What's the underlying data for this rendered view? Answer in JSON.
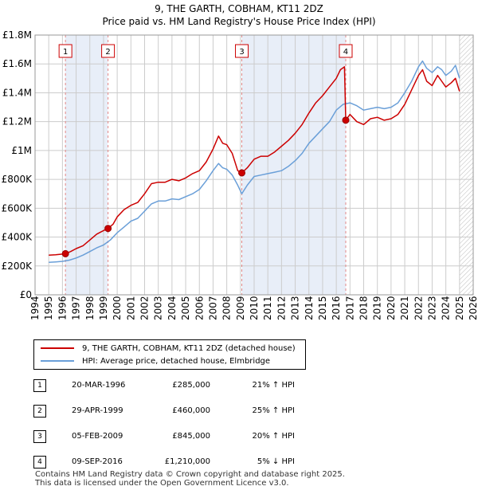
{
  "title": "9, THE GARTH, COBHAM, KT11 2DZ",
  "subtitle": "Price paid vs. HM Land Registry's House Price Index (HPI)",
  "legend": {
    "property": "9, THE GARTH, COBHAM, KT11 2DZ (detached house)",
    "hpi": "HPI: Average price, detached house, Elmbridge"
  },
  "colors": {
    "property": "#cc0000",
    "hpi": "#6a9fd8",
    "shade": "#e8eef8",
    "grid": "#cccccc",
    "vline": "#e38888"
  },
  "transactions": [
    {
      "num": "1",
      "date": "20-MAR-1996",
      "price": "£285,000",
      "hpi": "21% ↑ HPI"
    },
    {
      "num": "2",
      "date": "29-APR-1999",
      "price": "£460,000",
      "hpi": "25% ↑ HPI"
    },
    {
      "num": "3",
      "date": "05-FEB-2009",
      "price": "£845,000",
      "hpi": "20% ↑ HPI"
    },
    {
      "num": "4",
      "date": "09-SEP-2016",
      "price": "£1,210,000",
      "hpi": "5% ↓ HPI"
    }
  ],
  "footer": {
    "line1": "Contains HM Land Registry data © Crown copyright and database right 2025.",
    "line2": "This data is licensed under the Open Government Licence v3.0."
  },
  "chart_data": {
    "type": "line",
    "title": "9, THE GARTH, COBHAM, KT11 2DZ",
    "subtitle": "Price paid vs. HM Land Registry's House Price Index (HPI)",
    "xlabel": "",
    "ylabel": "",
    "xlim": [
      1994,
      2026
    ],
    "ylim": [
      0,
      1800000
    ],
    "xticks": [
      1994,
      1995,
      1996,
      1997,
      1998,
      1999,
      2000,
      2001,
      2002,
      2003,
      2004,
      2005,
      2006,
      2007,
      2008,
      2009,
      2010,
      2011,
      2012,
      2013,
      2014,
      2015,
      2016,
      2017,
      2018,
      2019,
      2020,
      2021,
      2022,
      2023,
      2024,
      2025,
      2026
    ],
    "yticks": [
      {
        "value": 0,
        "label": "£0"
      },
      {
        "value": 200000,
        "label": "£200K"
      },
      {
        "value": 400000,
        "label": "£400K"
      },
      {
        "value": 600000,
        "label": "£600K"
      },
      {
        "value": 800000,
        "label": "£800K"
      },
      {
        "value": 1000000,
        "label": "£1M"
      },
      {
        "value": 1200000,
        "label": "£1.2M"
      },
      {
        "value": 1400000,
        "label": "£1.4M"
      },
      {
        "value": 1600000,
        "label": "£1.6M"
      },
      {
        "value": 1800000,
        "label": "£1.8M"
      }
    ],
    "shaded_ranges": [
      [
        1996.2,
        1999.3
      ],
      [
        2009.1,
        2016.7
      ]
    ],
    "future_hatch_from": 2025.0,
    "sale_markers": [
      {
        "label": "1",
        "x": 1996.22,
        "y": 285000
      },
      {
        "label": "2",
        "x": 1999.33,
        "y": 460000
      },
      {
        "label": "3",
        "x": 2009.1,
        "y": 845000
      },
      {
        "label": "4",
        "x": 2016.69,
        "y": 1210000
      }
    ],
    "series": [
      {
        "name": "9, THE GARTH, COBHAM, KT11 2DZ (detached house)",
        "color": "#cc0000",
        "x": [
          1995.0,
          1995.5,
          1996.0,
          1996.22,
          1996.6,
          1997.0,
          1997.5,
          1998.0,
          1998.5,
          1999.0,
          1999.33,
          1999.7,
          2000.0,
          2000.5,
          2001.0,
          2001.5,
          2002.0,
          2002.5,
          2003.0,
          2003.5,
          2004.0,
          2004.5,
          2005.0,
          2005.5,
          2006.0,
          2006.5,
          2007.0,
          2007.4,
          2007.7,
          2008.0,
          2008.4,
          2008.8,
          2009.1,
          2009.5,
          2010.0,
          2010.5,
          2011.0,
          2011.5,
          2012.0,
          2012.5,
          2013.0,
          2013.5,
          2014.0,
          2014.5,
          2015.0,
          2015.5,
          2016.0,
          2016.3,
          2016.6,
          2016.69,
          2017.0,
          2017.5,
          2018.0,
          2018.5,
          2019.0,
          2019.5,
          2020.0,
          2020.5,
          2021.0,
          2021.5,
          2022.0,
          2022.3,
          2022.6,
          2023.0,
          2023.4,
          2023.7,
          2024.0,
          2024.4,
          2024.7,
          2025.0
        ],
        "y": [
          275000,
          278000,
          282000,
          285000,
          300000,
          320000,
          340000,
          380000,
          420000,
          445000,
          460000,
          490000,
          540000,
          590000,
          620000,
          640000,
          700000,
          770000,
          780000,
          780000,
          800000,
          790000,
          810000,
          840000,
          860000,
          920000,
          1010000,
          1100000,
          1050000,
          1040000,
          980000,
          860000,
          845000,
          880000,
          940000,
          960000,
          960000,
          990000,
          1030000,
          1070000,
          1120000,
          1180000,
          1260000,
          1330000,
          1380000,
          1440000,
          1500000,
          1560000,
          1580000,
          1210000,
          1250000,
          1200000,
          1180000,
          1220000,
          1230000,
          1210000,
          1220000,
          1250000,
          1320000,
          1420000,
          1520000,
          1560000,
          1480000,
          1450000,
          1520000,
          1480000,
          1440000,
          1470000,
          1500000,
          1410000
        ]
      },
      {
        "name": "HPI: Average price, detached house, Elmbridge",
        "color": "#6a9fd8",
        "x": [
          1995.0,
          1995.5,
          1996.0,
          1996.5,
          1997.0,
          1997.5,
          1998.0,
          1998.5,
          1999.0,
          1999.5,
          2000.0,
          2000.5,
          2001.0,
          2001.5,
          2002.0,
          2002.5,
          2003.0,
          2003.5,
          2004.0,
          2004.5,
          2005.0,
          2005.5,
          2006.0,
          2006.5,
          2007.0,
          2007.4,
          2007.7,
          2008.0,
          2008.4,
          2008.8,
          2009.1,
          2009.5,
          2010.0,
          2010.5,
          2011.0,
          2011.5,
          2012.0,
          2012.5,
          2013.0,
          2013.5,
          2014.0,
          2014.5,
          2015.0,
          2015.5,
          2016.0,
          2016.5,
          2017.0,
          2017.5,
          2018.0,
          2018.5,
          2019.0,
          2019.5,
          2020.0,
          2020.5,
          2021.0,
          2021.5,
          2022.0,
          2022.3,
          2022.6,
          2023.0,
          2023.4,
          2023.7,
          2024.0,
          2024.4,
          2024.7,
          2025.0
        ],
        "y": [
          225000,
          228000,
          232000,
          240000,
          255000,
          275000,
          300000,
          325000,
          345000,
          380000,
          430000,
          470000,
          510000,
          530000,
          580000,
          630000,
          650000,
          650000,
          665000,
          660000,
          680000,
          700000,
          730000,
          790000,
          860000,
          910000,
          880000,
          870000,
          830000,
          760000,
          700000,
          760000,
          820000,
          830000,
          840000,
          850000,
          860000,
          890000,
          930000,
          980000,
          1050000,
          1100000,
          1150000,
          1200000,
          1280000,
          1320000,
          1330000,
          1310000,
          1280000,
          1290000,
          1300000,
          1290000,
          1300000,
          1330000,
          1400000,
          1480000,
          1580000,
          1620000,
          1570000,
          1540000,
          1580000,
          1560000,
          1520000,
          1550000,
          1590000,
          1500000
        ]
      }
    ]
  }
}
